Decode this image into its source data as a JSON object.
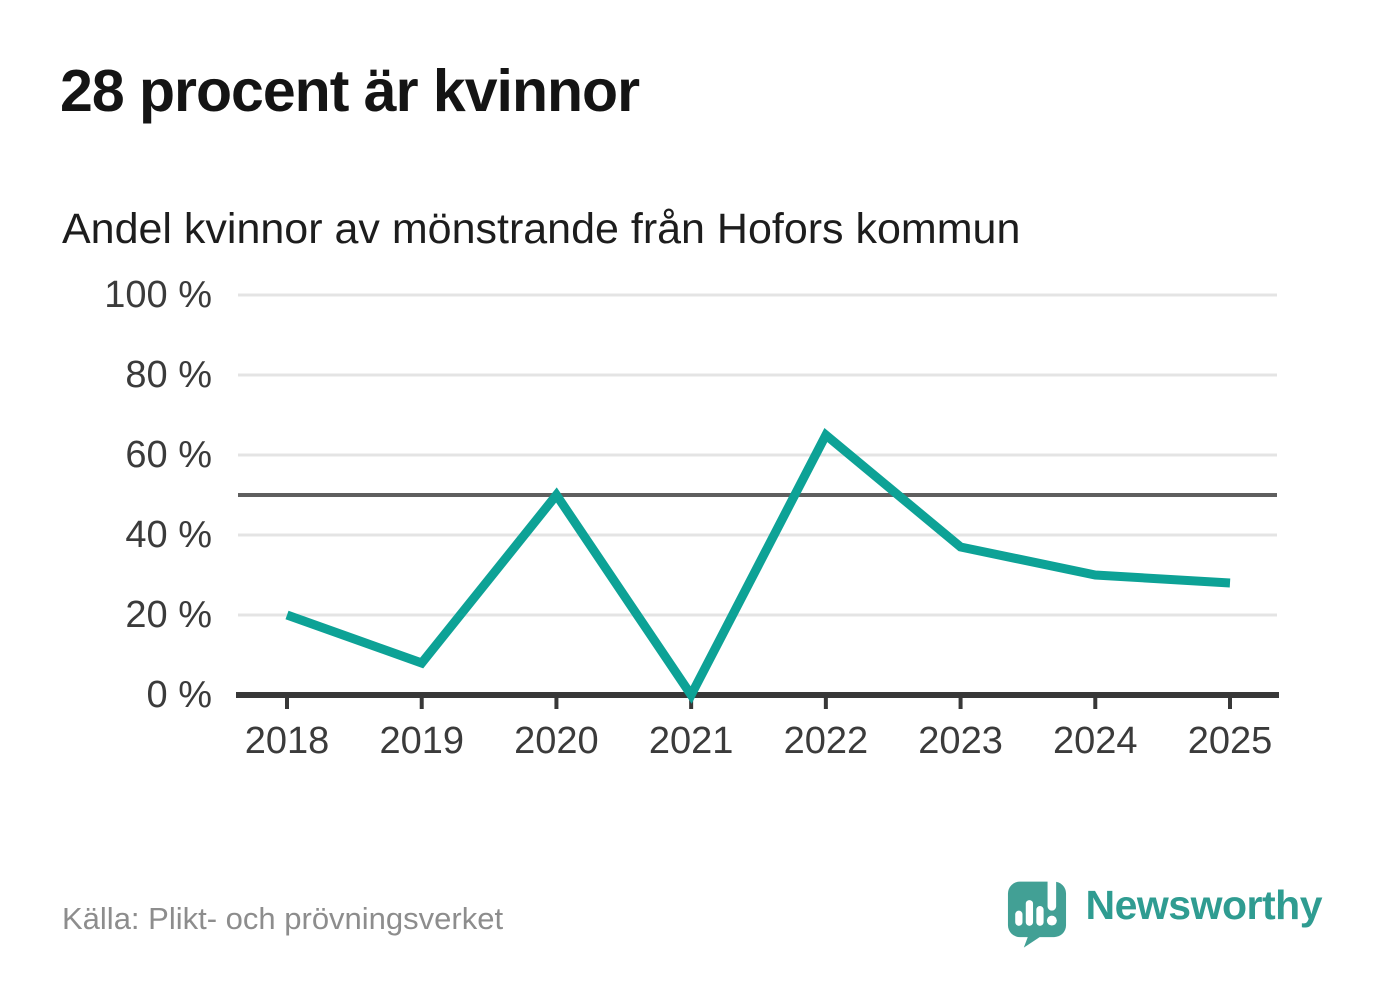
{
  "header": {
    "title": "28 procent är kvinnor",
    "subtitle": "Andel kvinnor av mönstrande från Hofors kommun"
  },
  "chart_data": {
    "type": "line",
    "title": "28 procent är kvinnor",
    "subtitle": "Andel kvinnor av mönstrande från Hofors kommun",
    "x": [
      "2018",
      "2019",
      "2020",
      "2021",
      "2022",
      "2023",
      "2024",
      "2025"
    ],
    "series": [
      {
        "name": "Andel kvinnor av mönstrande",
        "values": [
          20,
          8,
          50,
          0,
          65,
          37,
          30,
          28
        ]
      }
    ],
    "xlabel": "",
    "ylabel": "",
    "ylim": [
      0,
      100
    ],
    "yticks": [
      0,
      20,
      40,
      60,
      80,
      100
    ],
    "ytick_suffix": " %",
    "reference_line_y": 50,
    "grid": "horizontal",
    "legend": "none",
    "line_color": "#0da296"
  },
  "footer": {
    "source": "Källa: Plikt- och prövningsverket",
    "brand_name": "Newsworthy"
  },
  "colors": {
    "accent_teal": "#0da296",
    "logo_bubble_teal": "#42a095",
    "wordmark_teal": "#2f9c91",
    "title_text": "#141414",
    "axis_text": "#3b3b3b",
    "source_text": "#8d8d8d",
    "gridline": "#e4e4e4",
    "reference_line": "#5f5f5f",
    "axis_line": "#383838"
  }
}
